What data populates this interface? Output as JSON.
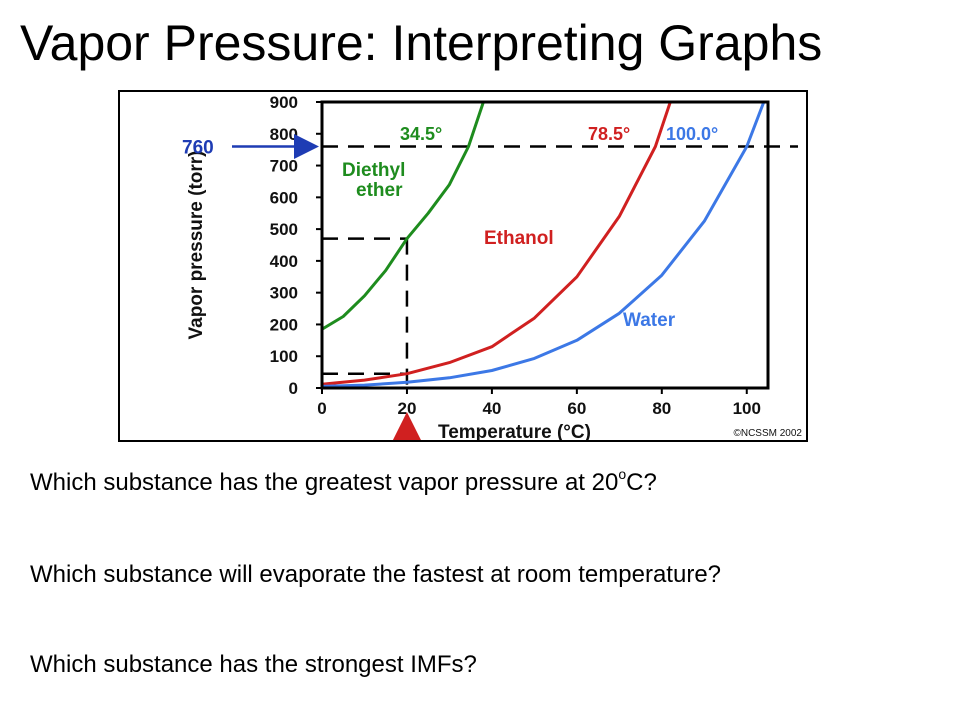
{
  "slide": {
    "title": "Vapor Pressure: Interpreting Graphs",
    "questions": {
      "q1": {
        "before": "Which substance has the greatest vapor pressure at 20",
        "sup": "o",
        "after": "C?"
      },
      "q2": {
        "text": "Which substance will evaporate the fastest at room temperature?"
      },
      "q3": {
        "text": "Which substance has the strongest IMFs?"
      }
    }
  },
  "chart_data": {
    "type": "line",
    "title": "",
    "xlabel": "Temperature (°C)",
    "ylabel": "Vapor pressure (torr)",
    "xlim": [
      0,
      105
    ],
    "ylim": [
      0,
      900
    ],
    "x_ticks": [
      0,
      20,
      40,
      60,
      80,
      100
    ],
    "y_ticks": [
      0,
      100,
      200,
      300,
      400,
      500,
      600,
      700,
      800,
      900
    ],
    "grid": false,
    "series": [
      {
        "name": "Diethyl ether",
        "label_lines": [
          "Diethyl",
          "ether"
        ],
        "color": "#1e8c1e",
        "boiling_point_label": "34.5°",
        "x": [
          0,
          5,
          10,
          15,
          20,
          25,
          30,
          34.5,
          38
        ],
        "y": [
          185,
          225,
          290,
          370,
          470,
          550,
          640,
          760,
          900
        ]
      },
      {
        "name": "Ethanol",
        "color": "#d02020",
        "boiling_point_label": "78.5°",
        "x": [
          0,
          10,
          20,
          30,
          40,
          50,
          60,
          70,
          78.5,
          82
        ],
        "y": [
          12,
          25,
          45,
          80,
          130,
          220,
          350,
          540,
          760,
          900
        ]
      },
      {
        "name": "Water",
        "color": "#3c78e6",
        "boiling_point_label": "100.0°",
        "x": [
          0,
          10,
          20,
          30,
          40,
          50,
          60,
          70,
          80,
          90,
          100,
          104
        ],
        "y": [
          5,
          9,
          18,
          32,
          55,
          93,
          150,
          235,
          355,
          525,
          760,
          900
        ]
      }
    ],
    "annotations": {
      "reference_pressure": {
        "value": 760,
        "label": "760",
        "color": "#1e3cb4"
      },
      "reference_temperature": {
        "value": 20,
        "color": "#d02020"
      },
      "guide_values": [
        470,
        45
      ]
    },
    "credit": "©NCSSM 2002"
  }
}
